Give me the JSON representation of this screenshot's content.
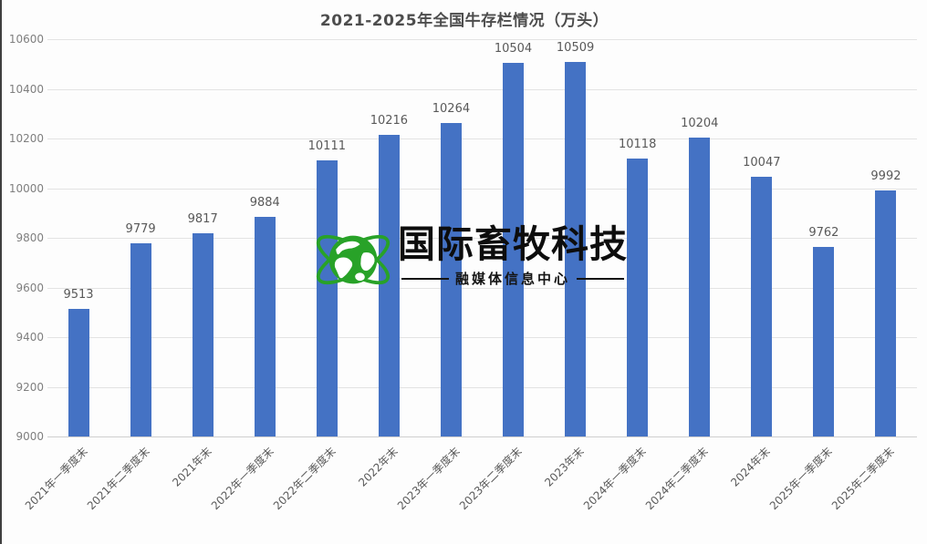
{
  "chart_data": {
    "type": "bar",
    "title": "2021-2025年全国牛存栏情况（万头）",
    "categories": [
      "2021年一季度末",
      "2021年二季度末",
      "2021年末",
      "2022年一季度末",
      "2022年二季度末",
      "2022年末",
      "2023年一季度末",
      "2023年二季度末",
      "2023年末",
      "2024年一季度末",
      "2024年二季度末",
      "2024年末",
      "2025年一季度末",
      "2025年二季度末"
    ],
    "values": [
      9513,
      9779,
      9817,
      9884,
      10111,
      10216,
      10264,
      10504,
      10509,
      10118,
      10204,
      10047,
      9762,
      9992
    ],
    "xlabel": "",
    "ylabel": "",
    "ylim": [
      9000,
      10600
    ],
    "ytick_step": 200,
    "grid": true,
    "legend_position": "none",
    "value_labels": true,
    "bar_color": "#4472C4",
    "gridline_color": "#e3e3e3",
    "label_color": "#595959",
    "axis_label_color": "#7f7f7f"
  },
  "watermark": {
    "brand": "国际畜牧科技",
    "subtitle": "融媒体信息中心",
    "globe_color": "#28A228"
  }
}
